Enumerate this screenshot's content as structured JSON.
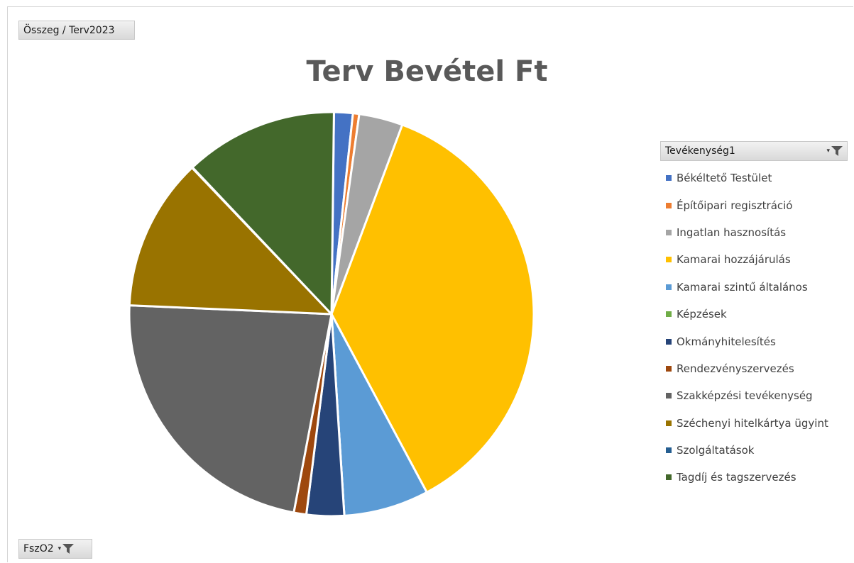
{
  "value_field": {
    "label": "Összeg / Terv2023"
  },
  "filter_field": {
    "label": "FszO2",
    "icon": "filter-icon"
  },
  "legend_field": {
    "label": "Tevékenység1",
    "icon": "filter-icon"
  },
  "chart_data": {
    "type": "pie",
    "title": "Terv Bevétel Ft",
    "legend_placement": "right",
    "categories": [
      "Békéltető Testület",
      "Építőipari regisztráció",
      "Ingatlan hasznosítás",
      "Kamarai hozzájárulás",
      "Kamarai szintű általános",
      "Képzések",
      "Okmányhitelesítés",
      "Rendezvényszervezés",
      "Szakképzési tevékenység",
      "Széchenyi hitelkártya ügyint",
      "Szolgáltatások",
      "Tagdíj és tagszervezés"
    ],
    "values": [
      1.5,
      0.5,
      3.5,
      36.5,
      6.8,
      0.0,
      3.0,
      1.0,
      22.7,
      12.2,
      0.05,
      12.25
    ],
    "colors": [
      "#4472C4",
      "#ED7D31",
      "#A5A5A5",
      "#FFC000",
      "#5B9BD5",
      "#70AD47",
      "#264478",
      "#9E480E",
      "#636363",
      "#997300",
      "#255E91",
      "#43682B"
    ]
  }
}
